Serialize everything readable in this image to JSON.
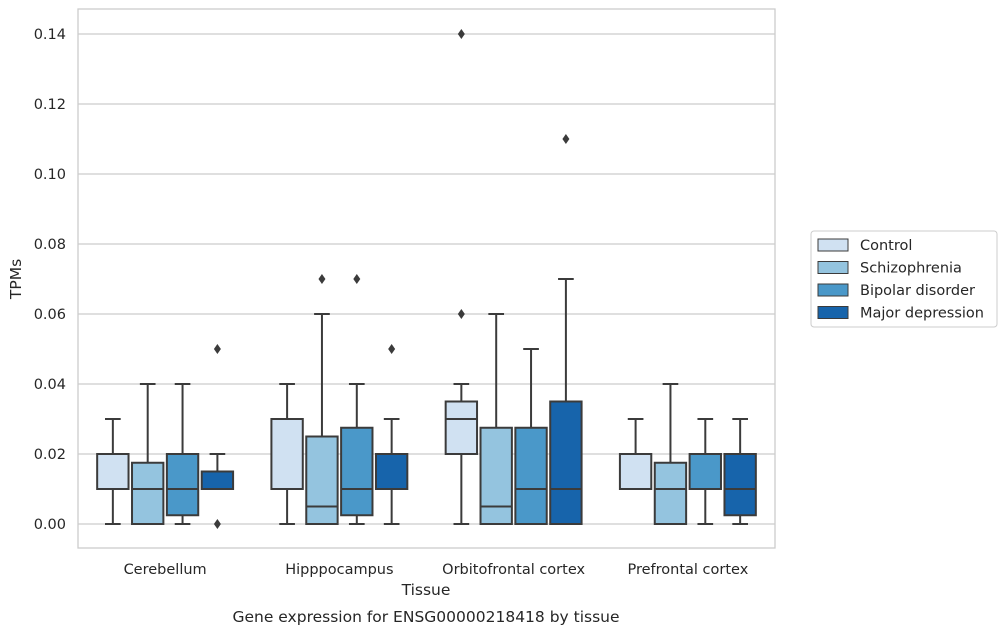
{
  "chart_data": {
    "type": "box",
    "caption": "Gene expression for ENSG00000218418 by tissue",
    "xlabel": "Tissue",
    "ylabel": "TPMs",
    "ylim": [
      -0.0068,
      0.147
    ],
    "yticks": [
      0.0,
      0.02,
      0.04,
      0.06,
      0.08,
      0.1,
      0.12,
      0.14
    ],
    "ytick_labels": [
      "0.00",
      "0.02",
      "0.04",
      "0.06",
      "0.08",
      "0.10",
      "0.12",
      "0.14"
    ],
    "grid": "horizontal",
    "legend_position": "right",
    "categories": [
      "Cerebellum",
      "Hipppocampus",
      "Orbitofrontal cortex",
      "Prefrontal cortex"
    ],
    "series": [
      {
        "name": "Control",
        "color": "#d0e1f2",
        "boxes": [
          {
            "whislo": 0.0,
            "q1": 0.01,
            "med": 0.01,
            "q3": 0.02,
            "whishi": 0.03,
            "fliers": []
          },
          {
            "whislo": 0.0,
            "q1": 0.01,
            "med": 0.01,
            "q3": 0.03,
            "whishi": 0.04,
            "fliers": []
          },
          {
            "whislo": 0.0,
            "q1": 0.02,
            "med": 0.03,
            "q3": 0.035,
            "whishi": 0.04,
            "fliers": [
              0.06,
              0.14
            ]
          },
          {
            "whislo": 0.01,
            "q1": 0.01,
            "med": 0.01,
            "q3": 0.02,
            "whishi": 0.03,
            "fliers": []
          }
        ]
      },
      {
        "name": "Schizophrenia",
        "color": "#94c4df",
        "boxes": [
          {
            "whislo": 0.0,
            "q1": 0.0,
            "med": 0.01,
            "q3": 0.0175,
            "whishi": 0.04,
            "fliers": []
          },
          {
            "whislo": 0.0,
            "q1": 0.0,
            "med": 0.005,
            "q3": 0.025,
            "whishi": 0.06,
            "fliers": [
              0.07
            ]
          },
          {
            "whislo": 0.0,
            "q1": 0.0,
            "med": 0.005,
            "q3": 0.0275,
            "whishi": 0.06,
            "fliers": []
          },
          {
            "whislo": 0.0,
            "q1": 0.0,
            "med": 0.01,
            "q3": 0.0175,
            "whishi": 0.04,
            "fliers": []
          }
        ]
      },
      {
        "name": "Bipolar disorder",
        "color": "#4a98c9",
        "boxes": [
          {
            "whislo": 0.0,
            "q1": 0.0025,
            "med": 0.01,
            "q3": 0.02,
            "whishi": 0.04,
            "fliers": []
          },
          {
            "whislo": 0.0,
            "q1": 0.0025,
            "med": 0.01,
            "q3": 0.0275,
            "whishi": 0.04,
            "fliers": [
              0.07
            ]
          },
          {
            "whislo": 0.0,
            "q1": 0.0,
            "med": 0.01,
            "q3": 0.0275,
            "whishi": 0.05,
            "fliers": []
          },
          {
            "whislo": 0.0,
            "q1": 0.01,
            "med": 0.01,
            "q3": 0.02,
            "whishi": 0.03,
            "fliers": []
          }
        ]
      },
      {
        "name": "Major depression",
        "color": "#1764ab",
        "boxes": [
          {
            "whislo": 0.01,
            "q1": 0.01,
            "med": 0.01,
            "q3": 0.015,
            "whishi": 0.02,
            "fliers": [
              0.0,
              0.05
            ]
          },
          {
            "whislo": 0.0,
            "q1": 0.01,
            "med": 0.01,
            "q3": 0.02,
            "whishi": 0.03,
            "fliers": [
              0.05
            ]
          },
          {
            "whislo": 0.0,
            "q1": 0.0,
            "med": 0.01,
            "q3": 0.035,
            "whishi": 0.07,
            "fliers": [
              0.11
            ]
          },
          {
            "whislo": 0.0,
            "q1": 0.0025,
            "med": 0.01,
            "q3": 0.02,
            "whishi": 0.03,
            "fliers": []
          }
        ]
      }
    ]
  }
}
